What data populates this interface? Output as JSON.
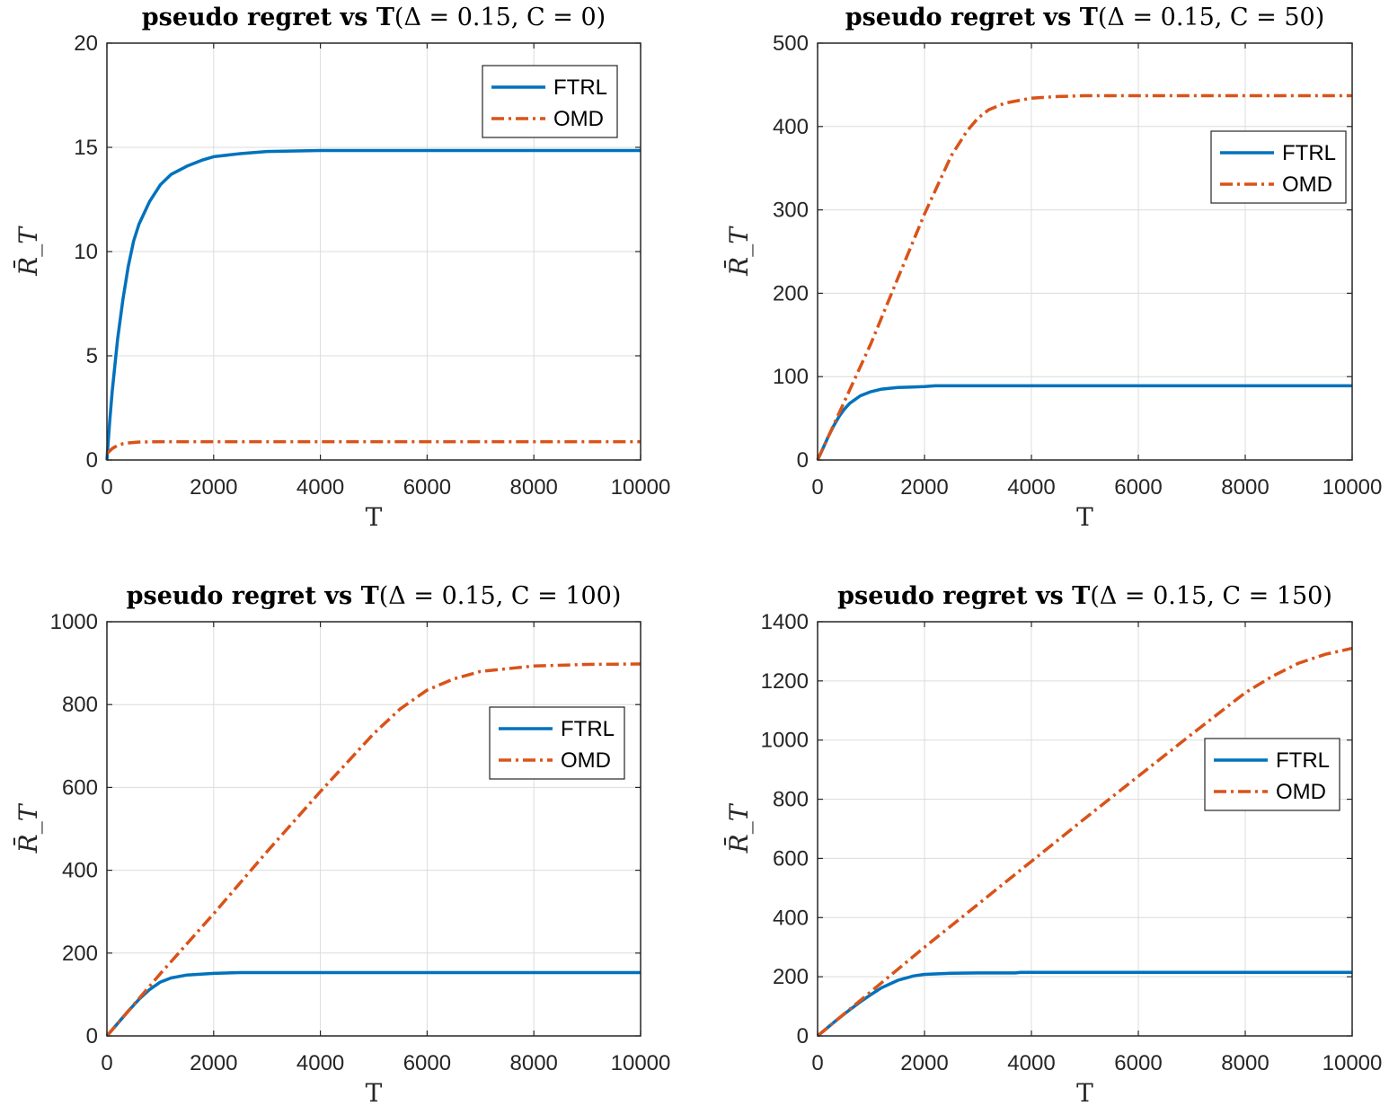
{
  "chart_data": [
    {
      "type": "line",
      "title_bold": "pseudo regret vs T",
      "title_params": "(Δ = 0.15, C = 0)",
      "xlabel": "T",
      "ylabel": "R̄_T",
      "xlim": [
        0,
        10000
      ],
      "ylim": [
        0,
        20
      ],
      "xticks": [
        0,
        2000,
        4000,
        6000,
        8000,
        10000
      ],
      "yticks": [
        0,
        5,
        10,
        15,
        20
      ],
      "grid": true,
      "legend_position": "top-right",
      "series": [
        {
          "name": "FTRL",
          "color": "#0072BD",
          "style": "solid",
          "x": [
            0,
            50,
            100,
            200,
            300,
            400,
            500,
            600,
            800,
            1000,
            1200,
            1500,
            1800,
            2000,
            2500,
            3000,
            4000,
            10000
          ],
          "y": [
            0,
            1.8,
            3.3,
            5.8,
            7.7,
            9.3,
            10.5,
            11.3,
            12.4,
            13.2,
            13.7,
            14.1,
            14.4,
            14.55,
            14.7,
            14.8,
            14.85,
            14.85
          ]
        },
        {
          "name": "OMD",
          "color": "#D95319",
          "style": "dashdot",
          "x": [
            0,
            100,
            200,
            300,
            400,
            600,
            800,
            1000,
            10000
          ],
          "y": [
            0.3,
            0.55,
            0.7,
            0.78,
            0.82,
            0.86,
            0.87,
            0.88,
            0.88
          ]
        }
      ]
    },
    {
      "type": "line",
      "title_bold": "pseudo regret vs T",
      "title_params": "(Δ = 0.15, C = 50)",
      "xlabel": "T",
      "ylabel": "R̄_T",
      "xlim": [
        0,
        10000
      ],
      "ylim": [
        0,
        500
      ],
      "xticks": [
        0,
        2000,
        4000,
        6000,
        8000,
        10000
      ],
      "yticks": [
        0,
        100,
        200,
        300,
        400,
        500
      ],
      "grid": true,
      "legend_position": "top-right",
      "series": [
        {
          "name": "FTRL",
          "color": "#0072BD",
          "style": "solid",
          "x": [
            0,
            100,
            200,
            300,
            400,
            500,
            600,
            800,
            1000,
            1200,
            1500,
            2000,
            2200,
            10000
          ],
          "y": [
            0,
            14,
            28,
            41,
            52,
            61,
            68,
            77,
            82,
            85,
            87,
            88,
            89,
            89
          ]
        },
        {
          "name": "OMD",
          "color": "#D95319",
          "style": "dashdot",
          "x": [
            0,
            500,
            1000,
            1500,
            2000,
            2500,
            2800,
            3000,
            3200,
            3500,
            4000,
            4500,
            5000,
            6000,
            10000
          ],
          "y": [
            0,
            70,
            140,
            218,
            295,
            365,
            395,
            410,
            420,
            428,
            434,
            436,
            437,
            437,
            437
          ]
        }
      ]
    },
    {
      "type": "line",
      "title_bold": "pseudo regret vs T",
      "title_params": "(Δ = 0.15, C = 100)",
      "xlabel": "T",
      "ylabel": "R̄_T",
      "xlim": [
        0,
        10000
      ],
      "ylim": [
        0,
        1000
      ],
      "xticks": [
        0,
        2000,
        4000,
        6000,
        8000,
        10000
      ],
      "yticks": [
        0,
        200,
        400,
        600,
        800,
        1000
      ],
      "grid": true,
      "legend_position": "top-right",
      "series": [
        {
          "name": "FTRL",
          "color": "#0072BD",
          "style": "solid",
          "x": [
            0,
            200,
            400,
            600,
            800,
            1000,
            1200,
            1500,
            2000,
            2500,
            10000
          ],
          "y": [
            0,
            30,
            60,
            88,
            112,
            130,
            140,
            147,
            151,
            153,
            153
          ]
        },
        {
          "name": "OMD",
          "color": "#D95319",
          "style": "dashdot",
          "x": [
            0,
            1000,
            2000,
            3000,
            4000,
            5000,
            5500,
            6000,
            6500,
            7000,
            8000,
            9000,
            10000
          ],
          "y": [
            0,
            150,
            295,
            445,
            590,
            730,
            790,
            835,
            862,
            880,
            893,
            897,
            898
          ]
        }
      ]
    },
    {
      "type": "line",
      "title_bold": "pseudo regret vs T",
      "title_params": "(Δ = 0.15, C = 150)",
      "xlabel": "T",
      "ylabel": "R̄_T",
      "xlim": [
        0,
        10000
      ],
      "ylim": [
        0,
        1400
      ],
      "xticks": [
        0,
        2000,
        4000,
        6000,
        8000,
        10000
      ],
      "yticks": [
        0,
        200,
        400,
        600,
        800,
        1000,
        1200,
        1400
      ],
      "grid": true,
      "legend_position": "top-right",
      "series": [
        {
          "name": "FTRL",
          "color": "#0072BD",
          "style": "solid",
          "x": [
            0,
            200,
            400,
            600,
            800,
            1000,
            1200,
            1500,
            1800,
            2000,
            2500,
            3000,
            3700,
            3800,
            10000
          ],
          "y": [
            0,
            30,
            60,
            88,
            115,
            140,
            163,
            188,
            203,
            208,
            212,
            213,
            213,
            215,
            215
          ]
        },
        {
          "name": "OMD",
          "color": "#D95319",
          "style": "dashdot",
          "x": [
            0,
            1000,
            2000,
            3000,
            4000,
            5000,
            6000,
            7000,
            8000,
            8500,
            9000,
            9500,
            10000
          ],
          "y": [
            0,
            150,
            300,
            445,
            590,
            735,
            878,
            1020,
            1160,
            1215,
            1260,
            1290,
            1310
          ]
        }
      ]
    }
  ]
}
